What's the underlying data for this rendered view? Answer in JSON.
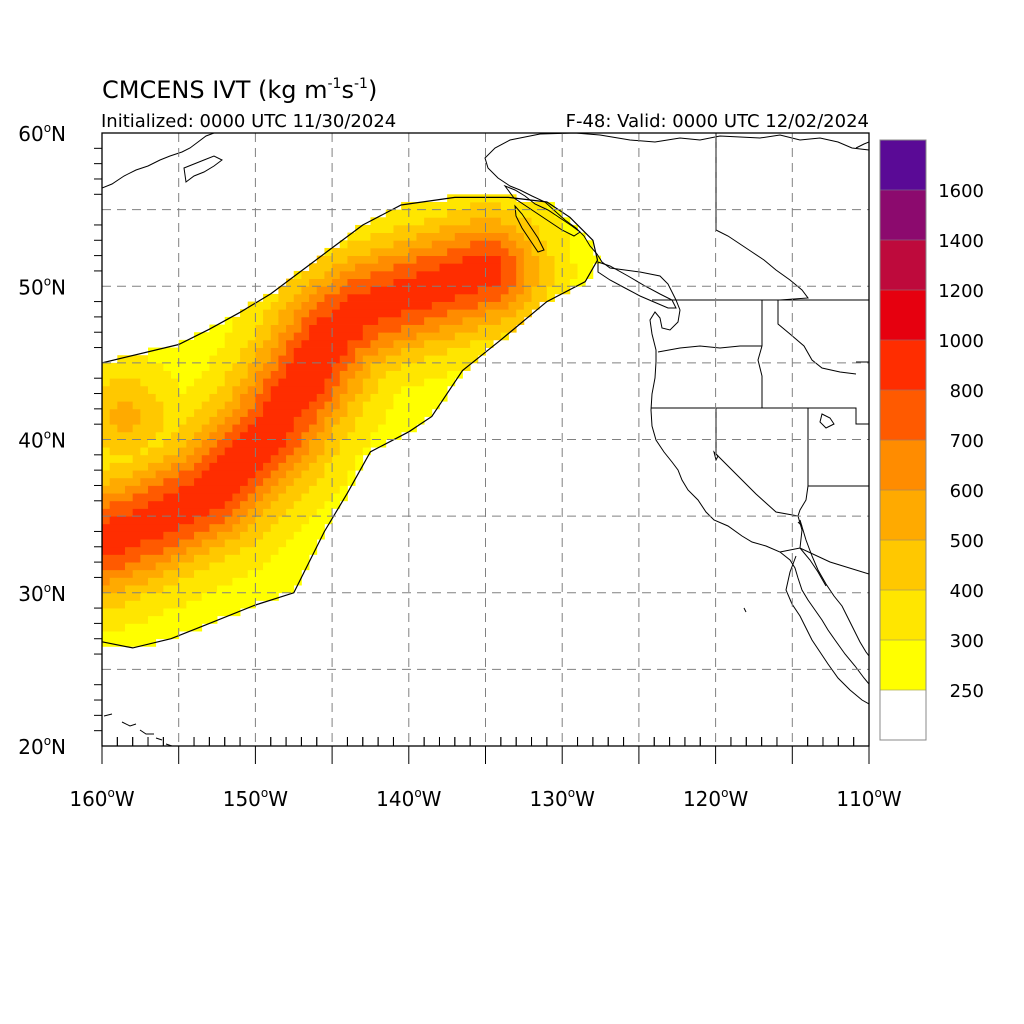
{
  "title": {
    "main": "CMCENS IVT (kg m",
    "exp1": "-1",
    "mid": "s",
    "exp2": "-1",
    "close": ")"
  },
  "initialized": "Initialized: 0000 UTC 11/30/2024",
  "valid": "F-48: Valid: 0000 UTC 12/02/2024",
  "axes": {
    "lat_labels": [
      {
        "value": 60,
        "label": "60"
      },
      {
        "value": 50,
        "label": "50"
      },
      {
        "value": 40,
        "label": "40"
      },
      {
        "value": 30,
        "label": "30"
      },
      {
        "value": 20,
        "label": "20"
      }
    ],
    "lat_suffix": "N",
    "lon_labels": [
      {
        "value": -160,
        "label": "160"
      },
      {
        "value": -150,
        "label": "150"
      },
      {
        "value": -140,
        "label": "140"
      },
      {
        "value": -130,
        "label": "130"
      },
      {
        "value": -120,
        "label": "120"
      },
      {
        "value": -110,
        "label": "110"
      }
    ],
    "lon_suffix": "W",
    "degree_mark": "o",
    "lon_range": [
      -160,
      -110
    ],
    "lat_range": [
      20,
      60
    ],
    "grid_interval_deg": 5,
    "grid_style": "dashed gray"
  },
  "colorbar": {
    "colors": [
      "#ffffff",
      "#ffff00",
      "#ffe600",
      "#ffc800",
      "#ffaa00",
      "#ff8c00",
      "#ff5a00",
      "#ff2d00",
      "#e6000f",
      "#be0a3c",
      "#8c0a6e",
      "#5a0a96"
    ],
    "tick_labels": [
      "250",
      "300",
      "400",
      "500",
      "600",
      "700",
      "800",
      "1000",
      "1200",
      "1400",
      "1600"
    ]
  },
  "chart_data": {
    "type": "heatmap",
    "variable": "IVT",
    "units": "kg m-1 s-1",
    "levels": [
      250,
      300,
      400,
      500,
      600,
      700,
      800,
      1000,
      1200,
      1400,
      1600
    ],
    "xlim": [
      -160,
      -110
    ],
    "ylim": [
      20,
      60
    ],
    "grid_step_deg": 0.5,
    "field_model": {
      "outer_boundary_lonlat": [
        [
          -160,
          45
        ],
        [
          -155,
          46.2
        ],
        [
          -153,
          47.2
        ],
        [
          -151,
          48.3
        ],
        [
          -149,
          49.5
        ],
        [
          -147,
          51
        ],
        [
          -145,
          52.5
        ],
        [
          -143,
          54
        ],
        [
          -140.5,
          55.3
        ],
        [
          -137,
          55.8
        ],
        [
          -133.5,
          55.8
        ],
        [
          -131,
          55.5
        ],
        [
          -129.5,
          54.5
        ],
        [
          -128,
          53
        ],
        [
          -127.7,
          51.7
        ],
        [
          -128.5,
          50.3
        ],
        [
          -131,
          49
        ],
        [
          -134,
          46.5
        ],
        [
          -136.5,
          44.5
        ],
        [
          -138.5,
          41.5
        ],
        [
          -140,
          40.5
        ],
        [
          -142.5,
          39.2
        ],
        [
          -144,
          36.5
        ],
        [
          -145.5,
          34
        ],
        [
          -146.5,
          32
        ],
        [
          -147.5,
          30
        ],
        [
          -150,
          29.2
        ],
        [
          -153,
          28
        ],
        [
          -155.5,
          27
        ],
        [
          -158,
          26.4
        ],
        [
          -160,
          26.8
        ]
      ],
      "axis_lonlat": [
        [
          -160.5,
          33.2
        ],
        [
          -157,
          34.5
        ],
        [
          -153,
          36.5
        ],
        [
          -149,
          40.5
        ],
        [
          -146.5,
          44.5
        ],
        [
          -145,
          47
        ],
        [
          -143,
          48.5
        ],
        [
          -140,
          49.5
        ],
        [
          -135,
          51
        ]
      ],
      "core_peak_ivt": 850,
      "secondary_lobe": {
        "center": [
          -158.5,
          41.5
        ],
        "peak_ivt": 520
      }
    }
  }
}
